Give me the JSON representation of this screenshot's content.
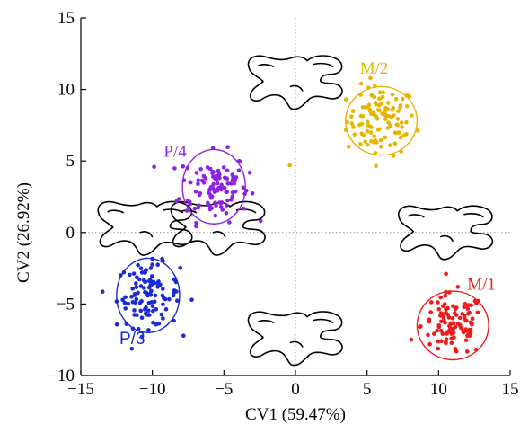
{
  "chart_data": {
    "type": "scatter",
    "title": "",
    "xlabel": "CV1 (59.47%)",
    "ylabel": "CV2 (26.92%)",
    "xlim": [
      -15,
      15
    ],
    "ylim": [
      -10,
      15
    ],
    "xticks": [
      -15,
      -10,
      -5,
      0,
      5,
      10,
      15
    ],
    "yticks": [
      -10,
      -5,
      0,
      5,
      10,
      15
    ],
    "xtick_labels": [
      "−15",
      "−10",
      "−5",
      "0",
      "5",
      "10",
      "15"
    ],
    "ytick_labels": [
      "−10",
      "−5",
      "0",
      "5",
      "10",
      "15"
    ],
    "reference_lines": {
      "x": 0,
      "y": 0,
      "style": "dotted"
    },
    "grid": false,
    "legend": "none (labels placed next to each cluster)",
    "series": [
      {
        "name": "M/2",
        "color": "#e8b400",
        "center": [
          6.0,
          7.8
        ],
        "sd": [
          1.2,
          1.2
        ],
        "n": 110,
        "ellipse_radii": [
          2.5,
          2.4
        ]
      },
      {
        "name": "P/4",
        "color": "#8b24e0",
        "center": [
          -5.7,
          3.2
        ],
        "sd": [
          1.2,
          1.2
        ],
        "n": 110,
        "ellipse_radii": [
          2.2,
          2.6
        ]
      },
      {
        "name": "P/3",
        "color": "#1a2ad6",
        "center": [
          -10.3,
          -4.4
        ],
        "sd": [
          1.1,
          1.1
        ],
        "n": 110,
        "ellipse_radii": [
          2.2,
          2.6
        ]
      },
      {
        "name": "M/1",
        "color": "#f01a1a",
        "center": [
          11.0,
          -6.5
        ],
        "sd": [
          1.1,
          1.1
        ],
        "n": 110,
        "ellipse_radii": [
          2.5,
          2.4
        ]
      }
    ],
    "outliers": [
      {
        "x": -0.4,
        "y": 4.7,
        "color": "#e8b400"
      }
    ],
    "tooth_outlines": [
      {
        "center": [
          0.0,
          10.5
        ]
      },
      {
        "center": [
          -10.5,
          0.3
        ]
      },
      {
        "center": [
          -5.4,
          0.3
        ]
      },
      {
        "center": [
          10.5,
          0.0
        ]
      },
      {
        "center": [
          0.0,
          -7.4
        ]
      }
    ]
  }
}
